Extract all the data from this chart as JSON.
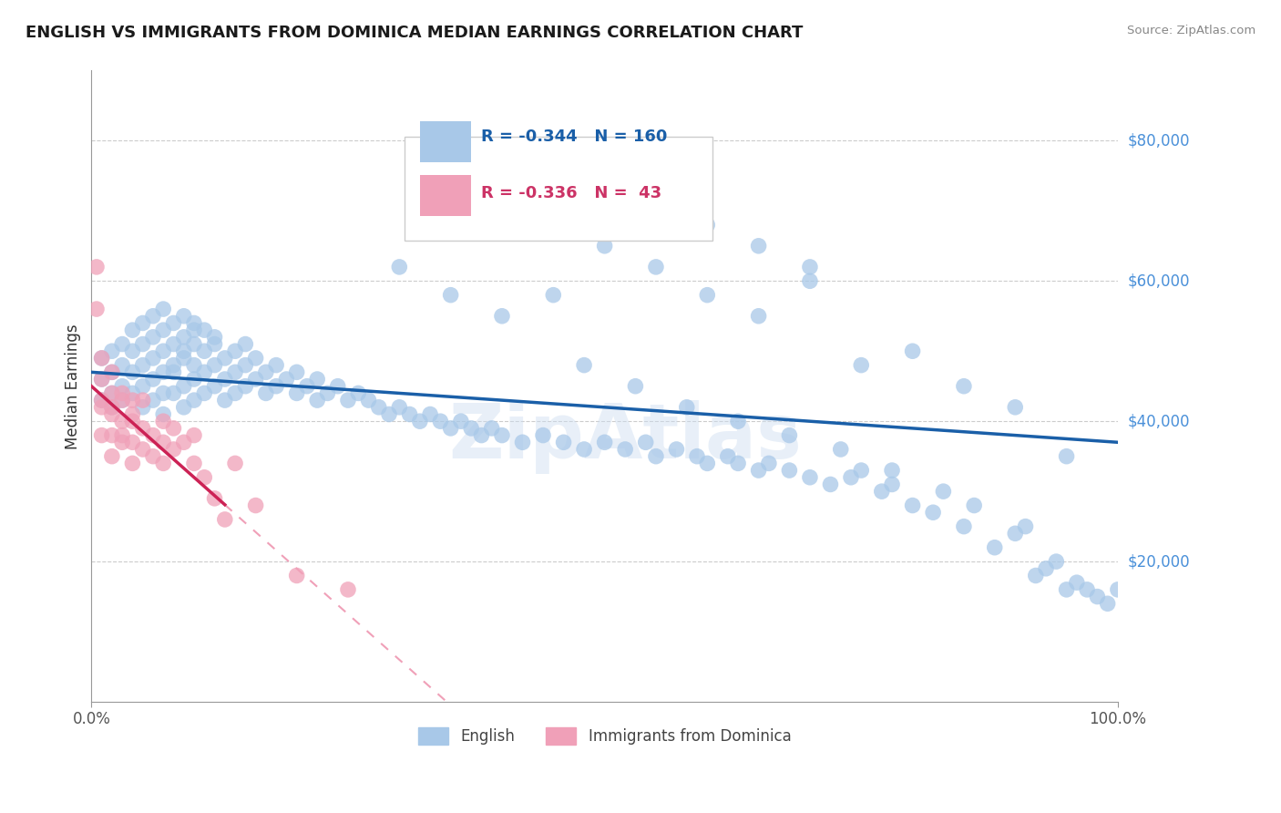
{
  "title": "ENGLISH VS IMMIGRANTS FROM DOMINICA MEDIAN EARNINGS CORRELATION CHART",
  "source": "Source: ZipAtlas.com",
  "ylabel": "Median Earnings",
  "xlim": [
    0.0,
    1.0
  ],
  "ylim": [
    0,
    90000
  ],
  "legend_r_english": "-0.344",
  "legend_n_english": "160",
  "legend_r_dominica": "-0.336",
  "legend_n_dominica": " 43",
  "english_color": "#a8c8e8",
  "dominica_color": "#f0a0b8",
  "english_line_color": "#1a5fa8",
  "dominica_line_color": "#cc2255",
  "dominica_line_dash_color": "#f0a0b8",
  "watermark": "ZipAtlas",
  "english_line_intercept": 47000,
  "english_line_slope": -10000,
  "dominica_line_intercept": 45000,
  "dominica_line_slope": -130000,
  "english_x": [
    0.01,
    0.01,
    0.01,
    0.02,
    0.02,
    0.02,
    0.02,
    0.03,
    0.03,
    0.03,
    0.03,
    0.04,
    0.04,
    0.04,
    0.04,
    0.05,
    0.05,
    0.05,
    0.05,
    0.05,
    0.06,
    0.06,
    0.06,
    0.06,
    0.06,
    0.07,
    0.07,
    0.07,
    0.07,
    0.07,
    0.07,
    0.08,
    0.08,
    0.08,
    0.08,
    0.08,
    0.09,
    0.09,
    0.09,
    0.09,
    0.09,
    0.09,
    0.1,
    0.1,
    0.1,
    0.1,
    0.1,
    0.1,
    0.11,
    0.11,
    0.11,
    0.11,
    0.12,
    0.12,
    0.12,
    0.12,
    0.13,
    0.13,
    0.13,
    0.14,
    0.14,
    0.14,
    0.15,
    0.15,
    0.15,
    0.16,
    0.16,
    0.17,
    0.17,
    0.18,
    0.18,
    0.19,
    0.2,
    0.2,
    0.21,
    0.22,
    0.22,
    0.23,
    0.24,
    0.25,
    0.26,
    0.27,
    0.28,
    0.29,
    0.3,
    0.31,
    0.32,
    0.33,
    0.34,
    0.35,
    0.36,
    0.37,
    0.38,
    0.39,
    0.4,
    0.42,
    0.44,
    0.46,
    0.48,
    0.5,
    0.52,
    0.54,
    0.55,
    0.57,
    0.59,
    0.6,
    0.62,
    0.63,
    0.65,
    0.66,
    0.68,
    0.7,
    0.72,
    0.74,
    0.75,
    0.77,
    0.78,
    0.8,
    0.82,
    0.83,
    0.85,
    0.86,
    0.88,
    0.9,
    0.91,
    0.92,
    0.93,
    0.94,
    0.95,
    0.96,
    0.97,
    0.98,
    0.99,
    1.0,
    0.3,
    0.35,
    0.4,
    0.45,
    0.5,
    0.55,
    0.6,
    0.65,
    0.7,
    0.75,
    0.8,
    0.85,
    0.9,
    0.95,
    0.5,
    0.55,
    0.6,
    0.65,
    0.7,
    0.48,
    0.53,
    0.58,
    0.63,
    0.68,
    0.73,
    0.78
  ],
  "english_y": [
    43000,
    46000,
    49000,
    44000,
    47000,
    50000,
    42000,
    45000,
    48000,
    51000,
    43000,
    44000,
    47000,
    50000,
    53000,
    45000,
    48000,
    51000,
    54000,
    42000,
    46000,
    49000,
    52000,
    55000,
    43000,
    47000,
    50000,
    53000,
    56000,
    44000,
    41000,
    48000,
    51000,
    54000,
    44000,
    47000,
    49000,
    52000,
    55000,
    45000,
    42000,
    50000,
    48000,
    51000,
    54000,
    46000,
    43000,
    53000,
    50000,
    53000,
    47000,
    44000,
    51000,
    48000,
    45000,
    52000,
    49000,
    46000,
    43000,
    50000,
    47000,
    44000,
    51000,
    48000,
    45000,
    49000,
    46000,
    47000,
    44000,
    48000,
    45000,
    46000,
    47000,
    44000,
    45000,
    46000,
    43000,
    44000,
    45000,
    43000,
    44000,
    43000,
    42000,
    41000,
    42000,
    41000,
    40000,
    41000,
    40000,
    39000,
    40000,
    39000,
    38000,
    39000,
    38000,
    37000,
    38000,
    37000,
    36000,
    37000,
    36000,
    37000,
    35000,
    36000,
    35000,
    34000,
    35000,
    34000,
    33000,
    34000,
    33000,
    32000,
    31000,
    32000,
    33000,
    30000,
    31000,
    28000,
    27000,
    30000,
    25000,
    28000,
    22000,
    24000,
    25000,
    18000,
    19000,
    20000,
    16000,
    17000,
    16000,
    15000,
    14000,
    16000,
    62000,
    58000,
    55000,
    58000,
    65000,
    62000,
    58000,
    55000,
    60000,
    48000,
    50000,
    45000,
    42000,
    35000,
    72000,
    68000,
    68000,
    65000,
    62000,
    48000,
    45000,
    42000,
    40000,
    38000,
    36000,
    33000
  ],
  "dominica_x": [
    0.005,
    0.005,
    0.01,
    0.01,
    0.01,
    0.01,
    0.01,
    0.02,
    0.02,
    0.02,
    0.02,
    0.02,
    0.02,
    0.03,
    0.03,
    0.03,
    0.03,
    0.03,
    0.04,
    0.04,
    0.04,
    0.04,
    0.04,
    0.05,
    0.05,
    0.05,
    0.06,
    0.06,
    0.07,
    0.07,
    0.07,
    0.08,
    0.08,
    0.09,
    0.1,
    0.1,
    0.11,
    0.12,
    0.13,
    0.14,
    0.16,
    0.2,
    0.25
  ],
  "dominica_y": [
    56000,
    62000,
    43000,
    46000,
    49000,
    38000,
    42000,
    44000,
    47000,
    38000,
    41000,
    35000,
    42000,
    43000,
    40000,
    37000,
    44000,
    38000,
    40000,
    43000,
    37000,
    34000,
    41000,
    39000,
    36000,
    43000,
    38000,
    35000,
    40000,
    37000,
    34000,
    39000,
    36000,
    37000,
    34000,
    38000,
    32000,
    29000,
    26000,
    34000,
    28000,
    18000,
    16000
  ]
}
